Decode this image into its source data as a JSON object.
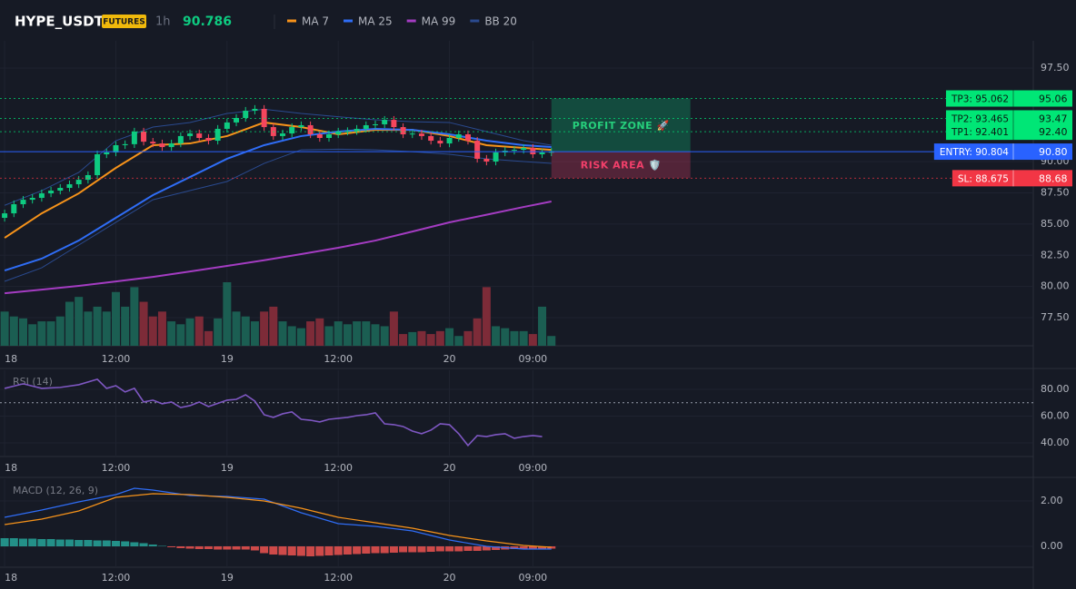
{
  "header": {
    "symbol": "HYPE_USDT",
    "badge": "FUTURES",
    "interval": "1h",
    "last_price": "90.786"
  },
  "chart_data": [
    {
      "type": "candlestick",
      "x": [
        0,
        1,
        2,
        3,
        4,
        5,
        6,
        7,
        8,
        9,
        10,
        11,
        12,
        13,
        14,
        15,
        16,
        17,
        18,
        19,
        20,
        21,
        22,
        23,
        24,
        25,
        26,
        27,
        28,
        29,
        30,
        31,
        32,
        33,
        34,
        35,
        36,
        37,
        38,
        39,
        40,
        41,
        42,
        43,
        44,
        45,
        46,
        47,
        48,
        49,
        50,
        51,
        52,
        53,
        54,
        55,
        56,
        57,
        58,
        59
      ],
      "open": [
        85.5,
        85.86,
        86.59,
        86.95,
        87.1,
        87.46,
        87.68,
        87.9,
        88.19,
        88.55,
        88.92,
        90.59,
        90.74,
        91.32,
        91.4,
        92.41,
        91.6,
        91.46,
        91.17,
        91.46,
        92.05,
        92.26,
        91.9,
        91.68,
        92.63,
        93.14,
        93.5,
        94.08,
        94.23,
        92.77,
        92.05,
        92.26,
        92.77,
        92.92,
        92.19,
        91.9,
        92.19,
        92.41,
        92.45,
        92.63,
        92.92,
        92.99,
        93.35,
        92.77,
        92.19,
        92.25,
        92.05,
        91.68,
        91.46,
        91.9,
        92.19,
        91.68,
        90.23,
        90.01,
        90.74,
        90.88,
        90.95,
        91.1,
        90.59,
        90.74
      ],
      "high": [
        86.16,
        86.89,
        87.25,
        87.4,
        87.76,
        87.98,
        88.2,
        88.49,
        88.85,
        89.22,
        90.89,
        91.04,
        91.62,
        91.7,
        92.71,
        92.71,
        91.9,
        91.76,
        91.76,
        92.35,
        92.56,
        92.56,
        92.2,
        92.93,
        93.44,
        93.8,
        94.38,
        94.53,
        94.53,
        93.07,
        92.56,
        93.07,
        93.22,
        93.22,
        92.49,
        92.49,
        92.71,
        92.75,
        92.93,
        93.22,
        93.29,
        93.65,
        93.65,
        93.07,
        92.55,
        92.55,
        92.35,
        91.98,
        92.2,
        92.49,
        92.49,
        91.98,
        90.53,
        91.04,
        91.18,
        91.25,
        91.4,
        91.4,
        91.04,
        91.09
      ],
      "low": [
        85.2,
        85.56,
        86.29,
        86.65,
        86.8,
        87.16,
        87.38,
        87.6,
        87.89,
        88.25,
        88.62,
        90.29,
        90.44,
        91.02,
        91.1,
        91.3,
        91.16,
        90.87,
        90.87,
        91.16,
        91.75,
        91.6,
        91.38,
        91.38,
        92.33,
        92.84,
        93.2,
        93.78,
        92.47,
        91.75,
        91.75,
        91.96,
        92.47,
        91.89,
        91.6,
        91.6,
        91.89,
        92.11,
        92.15,
        92.33,
        92.62,
        92.69,
        92.47,
        91.89,
        91.89,
        91.75,
        91.38,
        91.16,
        91.16,
        91.6,
        91.38,
        89.93,
        89.71,
        89.71,
        90.44,
        90.58,
        90.65,
        90.29,
        90.29,
        90.44
      ],
      "close": [
        85.86,
        86.59,
        86.95,
        87.1,
        87.46,
        87.68,
        87.9,
        88.19,
        88.55,
        88.92,
        90.59,
        90.74,
        91.32,
        91.4,
        92.41,
        91.6,
        91.46,
        91.17,
        91.46,
        92.05,
        92.26,
        91.9,
        91.68,
        92.63,
        93.14,
        93.5,
        94.08,
        94.23,
        92.77,
        92.05,
        92.26,
        92.77,
        92.92,
        92.19,
        91.9,
        92.19,
        92.41,
        92.45,
        92.63,
        92.92,
        92.99,
        93.35,
        92.77,
        92.19,
        92.25,
        92.05,
        91.68,
        91.46,
        91.9,
        92.19,
        91.68,
        90.23,
        90.01,
        90.74,
        90.88,
        90.95,
        91.1,
        90.59,
        90.74,
        90.79
      ],
      "volume": [
        35,
        30,
        28,
        22,
        25,
        25,
        30,
        45,
        50,
        35,
        40,
        35,
        55,
        40,
        60,
        45,
        30,
        35,
        25,
        22,
        28,
        30,
        15,
        28,
        65,
        35,
        30,
        25,
        35,
        40,
        25,
        20,
        18,
        25,
        28,
        20,
        25,
        22,
        25,
        25,
        22,
        20,
        35,
        12,
        14,
        15,
        12,
        15,
        18,
        10,
        15,
        28,
        60,
        20,
        18,
        15,
        15,
        12,
        40,
        10
      ],
      "up_color": "#0ecb81",
      "down_color": "#f6465d",
      "volume_up_color": "#1b5e52",
      "volume_down_color": "#7d2b38",
      "series": [
        {
          "name": "MA 7",
          "color": "#f7931a",
          "x": [
            0,
            4,
            8,
            12,
            16,
            20,
            24,
            28,
            32,
            36,
            40,
            44,
            48,
            52,
            56,
            59
          ],
          "values": [
            83.9,
            85.86,
            87.46,
            89.5,
            91.32,
            91.46,
            92.05,
            93.14,
            92.77,
            92.19,
            92.55,
            92.55,
            92.05,
            91.32,
            91.1,
            90.95
          ]
        },
        {
          "name": "MA 25",
          "color": "#2f6df6",
          "x": [
            0,
            4,
            8,
            12,
            16,
            20,
            24,
            28,
            32,
            36,
            40,
            44,
            48,
            52,
            56,
            59
          ],
          "values": [
            81.28,
            82.23,
            83.68,
            85.5,
            87.32,
            88.77,
            90.23,
            91.32,
            92.05,
            92.41,
            92.63,
            92.55,
            92.19,
            91.68,
            91.32,
            91.17
          ]
        },
        {
          "name": "MA 99",
          "color": "#a43cc2",
          "x": [
            0,
            4,
            8,
            12,
            16,
            20,
            24,
            28,
            32,
            36,
            40,
            44,
            48,
            52,
            56,
            59
          ],
          "values": [
            79.46,
            79.75,
            80.05,
            80.4,
            80.77,
            81.2,
            81.65,
            82.1,
            82.59,
            83.1,
            83.68,
            84.4,
            85.14,
            85.75,
            86.37,
            86.81
          ]
        },
        {
          "name": "BB 20",
          "color": "#2a4a8f",
          "x": [
            0,
            4,
            8,
            12,
            16,
            20,
            24,
            28,
            32,
            36,
            40,
            44,
            48,
            52,
            56,
            59
          ],
          "upper": [
            86.5,
            87.68,
            89.14,
            91.68,
            92.77,
            93.14,
            93.86,
            94.2,
            93.86,
            93.6,
            93.35,
            93.2,
            93.14,
            92.41,
            91.68,
            91.32
          ],
          "lower": [
            80.41,
            81.5,
            83.32,
            85.14,
            86.95,
            87.68,
            88.41,
            89.86,
            90.95,
            91.0,
            90.95,
            90.8,
            90.59,
            90.23,
            90.01,
            89.86
          ]
        }
      ],
      "levels": [
        {
          "value": 95.062,
          "label": "TP3: 95.062",
          "axis_label": "95.06",
          "color": "#00e676",
          "style": "dotted"
        },
        {
          "value": 93.465,
          "label": "TP2: 93.465",
          "axis_label": "93.47",
          "color": "#00e676",
          "style": "dotted"
        },
        {
          "value": 92.401,
          "label": "TP1: 92.401",
          "axis_label": "92.40",
          "color": "#00e676",
          "style": "dotted"
        },
        {
          "value": 90.804,
          "label": "ENTRY: 90.804",
          "axis_label": "90.80",
          "color": "#2962ff",
          "style": "solid"
        },
        {
          "value": 88.675,
          "label": "SL: 88.675",
          "axis_label": "88.68",
          "color": "#f23645",
          "style": "dotted"
        }
      ],
      "zones": [
        {
          "label": "PROFIT ZONE 🚀",
          "x": [
            59,
            74
          ],
          "color": "#0ecb81",
          "text_color": "#26d07c"
        },
        {
          "label": "RISK AREA 🛡️",
          "x": [
            59,
            74
          ],
          "color": "#f23f6a",
          "text_color": "#f23f6a"
        }
      ],
      "xlim": [
        -0.5,
        111
      ],
      "xticks": [
        {
          "value": 0,
          "label": "18"
        },
        {
          "value": 12,
          "label": "12:00"
        },
        {
          "value": 24,
          "label": "19"
        },
        {
          "value": 36,
          "label": "12:00"
        },
        {
          "value": 48,
          "label": "20"
        },
        {
          "value": 57,
          "label": "09:00"
        }
      ],
      "ylim": [
        75.25,
        99.68
      ],
      "yticks": [
        {
          "value": 77.5,
          "label": "77.50"
        },
        {
          "value": 80,
          "label": "80.00"
        },
        {
          "value": 82.5,
          "label": "82.50"
        },
        {
          "value": 85,
          "label": "85.00"
        },
        {
          "value": 87.5,
          "label": "87.50"
        },
        {
          "value": 90,
          "label": "90.00"
        },
        {
          "value": 97.5,
          "label": "97.50"
        }
      ],
      "grid": true
    },
    {
      "type": "line",
      "title": "RSI (14)",
      "series": [
        {
          "color": "#7e57c2",
          "x": [
            0,
            2,
            4,
            6,
            8,
            10,
            11,
            12,
            13,
            14,
            15,
            16,
            17,
            18,
            19,
            20,
            21,
            22,
            24,
            25,
            26,
            27,
            28,
            29,
            30,
            31,
            32,
            33,
            34,
            35,
            36,
            37,
            38,
            39,
            40,
            41,
            42,
            43,
            44,
            45,
            46,
            47,
            48,
            49,
            50,
            51,
            52,
            53,
            54,
            55,
            56,
            57,
            58
          ],
          "values": [
            80.7,
            84.1,
            80.7,
            81.4,
            83.4,
            87.5,
            80.7,
            82.7,
            78.0,
            80.7,
            70.5,
            71.9,
            69.2,
            70.5,
            66.4,
            67.8,
            70.5,
            67.1,
            71.9,
            72.5,
            75.9,
            71.2,
            61.0,
            59.0,
            61.7,
            63.1,
            57.6,
            56.9,
            55.6,
            57.6,
            58.3,
            59.0,
            60.3,
            61.0,
            62.4,
            54.2,
            53.6,
            52.2,
            48.8,
            46.8,
            49.5,
            54.2,
            53.6,
            46.8,
            38.0,
            45.4,
            44.7,
            46.1,
            46.8,
            43.4,
            44.7,
            45.4,
            44.7
          ]
        }
      ],
      "reference_lines": [
        70
      ],
      "xlim": [
        -0.5,
        111
      ],
      "xticks": [
        {
          "value": 0,
          "label": "18"
        },
        {
          "value": 12,
          "label": "12:00"
        },
        {
          "value": 24,
          "label": "19"
        },
        {
          "value": 36,
          "label": "12:00"
        },
        {
          "value": 48,
          "label": "20"
        },
        {
          "value": 57,
          "label": "09:00"
        }
      ],
      "ylim": [
        29.8,
        94.2
      ],
      "yticks": [
        {
          "value": 40,
          "label": "40.00"
        },
        {
          "value": 60,
          "label": "60.00"
        },
        {
          "value": 80,
          "label": "80.00"
        }
      ],
      "grid": true
    },
    {
      "type": "macd",
      "title": "MACD (12, 26, 9)",
      "histogram": {
        "x": [
          0,
          1,
          2,
          3,
          4,
          5,
          6,
          7,
          8,
          9,
          10,
          11,
          12,
          13,
          14,
          15,
          16,
          17,
          18,
          19,
          20,
          21,
          22,
          23,
          24,
          25,
          26,
          27,
          28,
          29,
          30,
          31,
          32,
          33,
          34,
          35,
          36,
          37,
          38,
          39,
          40,
          41,
          42,
          43,
          44,
          45,
          46,
          47,
          48,
          49,
          50,
          51,
          52,
          53,
          54,
          55,
          56,
          57,
          58,
          59
        ],
        "values": [
          0.36,
          0.36,
          0.34,
          0.34,
          0.32,
          0.32,
          0.3,
          0.3,
          0.28,
          0.28,
          0.26,
          0.26,
          0.24,
          0.22,
          0.18,
          0.14,
          0.08,
          0.02,
          -0.04,
          -0.08,
          -0.1,
          -0.12,
          -0.12,
          -0.14,
          -0.14,
          -0.14,
          -0.14,
          -0.18,
          -0.3,
          -0.36,
          -0.38,
          -0.4,
          -0.42,
          -0.44,
          -0.42,
          -0.4,
          -0.38,
          -0.36,
          -0.34,
          -0.32,
          -0.3,
          -0.3,
          -0.28,
          -0.26,
          -0.26,
          -0.26,
          -0.24,
          -0.22,
          -0.22,
          -0.22,
          -0.2,
          -0.2,
          -0.18,
          -0.16,
          -0.14,
          -0.12,
          -0.1,
          -0.1,
          -0.1,
          -0.1
        ],
        "positive_color": "#26a69a",
        "negative_color": "#ef5350"
      },
      "series": [
        {
          "color": "#2f6df6",
          "x": [
            0,
            4,
            8,
            12,
            14,
            16,
            20,
            24,
            28,
            32,
            36,
            40,
            44,
            48,
            52,
            56,
            59
          ],
          "values": [
            1.28,
            1.6,
            1.96,
            2.28,
            2.56,
            2.48,
            2.24,
            2.2,
            2.08,
            1.48,
            1.0,
            0.88,
            0.68,
            0.28,
            0.0,
            -0.12,
            -0.12
          ]
        },
        {
          "color": "#f7931a",
          "x": [
            0,
            4,
            8,
            12,
            16,
            20,
            24,
            28,
            32,
            36,
            40,
            44,
            48,
            52,
            56,
            59
          ],
          "values": [
            0.96,
            1.2,
            1.56,
            2.16,
            2.32,
            2.28,
            2.16,
            2.0,
            1.68,
            1.28,
            1.04,
            0.8,
            0.48,
            0.24,
            0.04,
            -0.04
          ]
        }
      ],
      "xlim": [
        -0.5,
        111
      ],
      "xticks": [
        {
          "value": 0,
          "label": "18"
        },
        {
          "value": 12,
          "label": "12:00"
        },
        {
          "value": 24,
          "label": "19"
        },
        {
          "value": 36,
          "label": "12:00"
        },
        {
          "value": 48,
          "label": "20"
        },
        {
          "value": 57,
          "label": "09:00"
        }
      ],
      "ylim": [
        -0.92,
        2.96
      ],
      "yticks": [
        {
          "value": 0,
          "label": "0.00"
        },
        {
          "value": 2,
          "label": "2.00"
        }
      ],
      "grid": true
    }
  ]
}
